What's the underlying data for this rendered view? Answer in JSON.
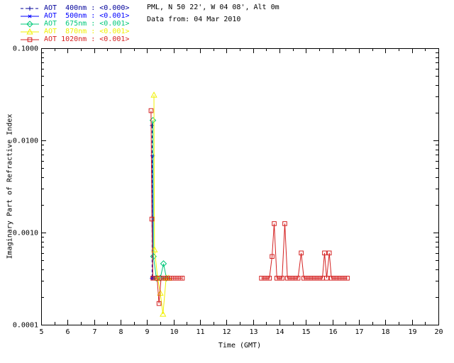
{
  "header": {
    "site": "PML, N 50 22', W 04 08', Alt 0m",
    "date": "Data from: 04 Mar 2010"
  },
  "legend": {
    "position": "top-left",
    "items": [
      {
        "label": "AOT  400nm : <0.000>",
        "color": "#000099",
        "marker": "plus",
        "dash": "4,3"
      },
      {
        "label": "AOT  500nm : <0.001>",
        "color": "#0000ff",
        "marker": "asterisk",
        "dash": ""
      },
      {
        "label": "AOT  675nm : <0.001>",
        "color": "#00c87a",
        "marker": "diamond",
        "dash": ""
      },
      {
        "label": "AOT  870nm : <0.001>",
        "color": "#f0f000",
        "marker": "triangle",
        "dash": ""
      },
      {
        "label": "AOT 1020nm : <0.001>",
        "color": "#d42020",
        "marker": "square",
        "dash": ""
      }
    ]
  },
  "chart_data": {
    "type": "line",
    "title": "",
    "xlabel": "Time (GMT)",
    "ylabel": "Imaginary Part of Refractive Index",
    "xlim": [
      5,
      20
    ],
    "ylim": [
      0.0001,
      0.1
    ],
    "yscale": "log",
    "grid": false,
    "x_ticks": [
      5,
      6,
      7,
      8,
      9,
      10,
      11,
      12,
      13,
      14,
      15,
      16,
      17,
      18,
      19,
      20
    ],
    "y_ticks": [
      {
        "value": 0.0001,
        "label": "0.0001"
      },
      {
        "value": 0.001,
        "label": "0.0010"
      },
      {
        "value": 0.01,
        "label": "0.0100"
      },
      {
        "value": 0.1,
        "label": "0.1000"
      }
    ],
    "series": [
      {
        "name": "AOT 400nm",
        "color": "#000099",
        "marker": "plus",
        "dash": "4,3",
        "segments": [
          [
            [
              9.19,
              0.0145
            ],
            [
              9.19,
              0.00032
            ]
          ]
        ]
      },
      {
        "name": "AOT 500nm",
        "color": "#0000ff",
        "marker": "asterisk",
        "dash": "",
        "segments": [
          [
            [
              9.21,
              0.0068
            ],
            [
              9.21,
              0.00032
            ]
          ]
        ]
      },
      {
        "name": "AOT 675nm",
        "color": "#00c87a",
        "marker": "diamond",
        "dash": "",
        "segments": [
          [
            [
              9.22,
              0.0165
            ],
            [
              9.24,
              0.00055
            ],
            [
              9.35,
              0.00032
            ],
            [
              9.5,
              0.00032
            ],
            [
              9.62,
              0.00046
            ],
            [
              9.73,
              0.00032
            ]
          ]
        ]
      },
      {
        "name": "AOT 870nm",
        "color": "#f0f000",
        "marker": "triangle",
        "dash": "",
        "segments": [
          [
            [
              9.26,
              0.031
            ],
            [
              9.28,
              0.00065
            ],
            [
              9.4,
              0.00032
            ],
            [
              9.5,
              0.00022
            ],
            [
              9.6,
              0.00013
            ],
            [
              9.72,
              0.00032
            ],
            [
              9.82,
              0.00032
            ]
          ]
        ]
      },
      {
        "name": "AOT 1020nm",
        "color": "#d42020",
        "marker": "square",
        "dash": "",
        "segments": [
          [
            [
              9.15,
              0.021
            ],
            [
              9.18,
              0.0014
            ],
            [
              9.22,
              0.00032
            ],
            [
              9.3,
              0.00032
            ],
            [
              9.38,
              0.00032
            ],
            [
              9.45,
              0.00017
            ],
            [
              9.53,
              0.00032
            ],
            [
              9.61,
              0.00032
            ],
            [
              9.69,
              0.00032
            ],
            [
              9.77,
              0.00032
            ],
            [
              9.85,
              0.00032
            ],
            [
              9.93,
              0.00032
            ],
            [
              10.01,
              0.00032
            ],
            [
              10.09,
              0.00032
            ],
            [
              10.17,
              0.00032
            ],
            [
              10.25,
              0.00032
            ],
            [
              10.33,
              0.00032
            ]
          ],
          [
            [
              13.32,
              0.00032
            ],
            [
              13.42,
              0.00032
            ],
            [
              13.52,
              0.00032
            ],
            [
              13.62,
              0.00032
            ],
            [
              13.72,
              0.00055
            ],
            [
              13.8,
              0.00125
            ],
            [
              13.9,
              0.00032
            ],
            [
              14.0,
              0.00032
            ],
            [
              14.1,
              0.00032
            ],
            [
              14.2,
              0.00125
            ],
            [
              14.3,
              0.00032
            ],
            [
              14.4,
              0.00032
            ],
            [
              14.5,
              0.00032
            ],
            [
              14.6,
              0.00032
            ],
            [
              14.7,
              0.00032
            ],
            [
              14.82,
              0.0006
            ],
            [
              14.92,
              0.00032
            ],
            [
              15.02,
              0.00032
            ],
            [
              15.12,
              0.00032
            ],
            [
              15.22,
              0.00032
            ],
            [
              15.32,
              0.00032
            ],
            [
              15.42,
              0.00032
            ],
            [
              15.52,
              0.00032
            ],
            [
              15.62,
              0.00032
            ],
            [
              15.7,
              0.0006
            ],
            [
              15.78,
              0.00032
            ],
            [
              15.88,
              0.0006
            ],
            [
              15.96,
              0.00032
            ],
            [
              16.06,
              0.00032
            ],
            [
              16.16,
              0.00032
            ],
            [
              16.26,
              0.00032
            ],
            [
              16.36,
              0.00032
            ],
            [
              16.46,
              0.00032
            ],
            [
              16.56,
              0.00032
            ]
          ]
        ]
      }
    ]
  }
}
